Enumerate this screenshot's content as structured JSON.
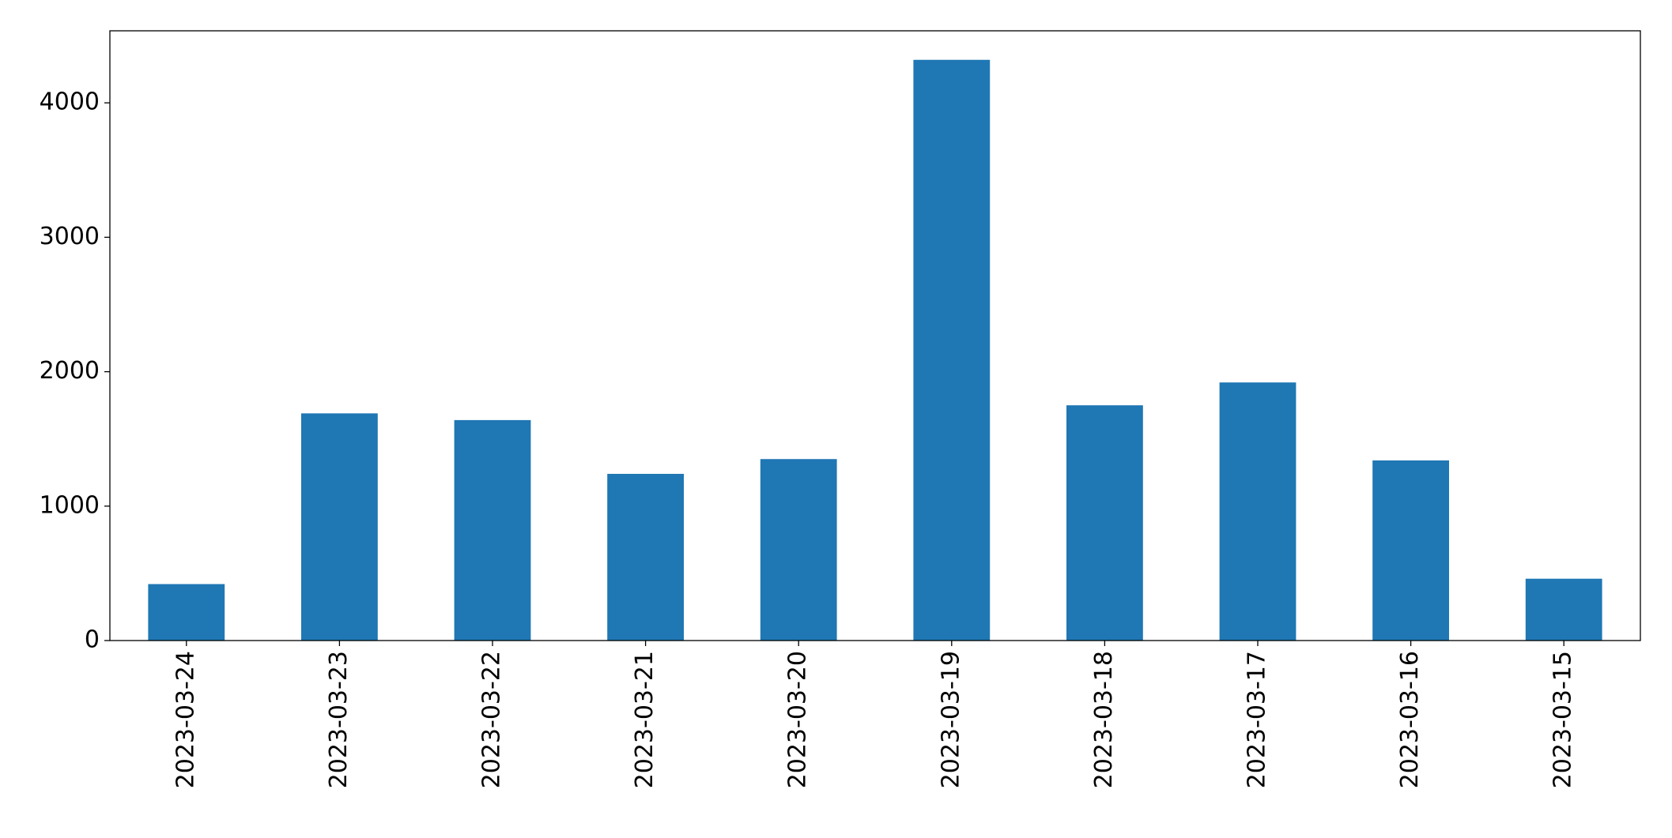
{
  "chart_data": {
    "type": "bar",
    "categories": [
      "2023-03-24",
      "2023-03-23",
      "2023-03-22",
      "2023-03-21",
      "2023-03-20",
      "2023-03-19",
      "2023-03-18",
      "2023-03-17",
      "2023-03-16",
      "2023-03-15"
    ],
    "values": [
      420,
      1690,
      1640,
      1240,
      1350,
      4320,
      1750,
      1920,
      1340,
      460
    ],
    "color": "#1f77b4",
    "ylim": [
      0,
      4536
    ],
    "yticks": [
      0,
      1000,
      2000,
      3000,
      4000
    ],
    "grid": false
  }
}
